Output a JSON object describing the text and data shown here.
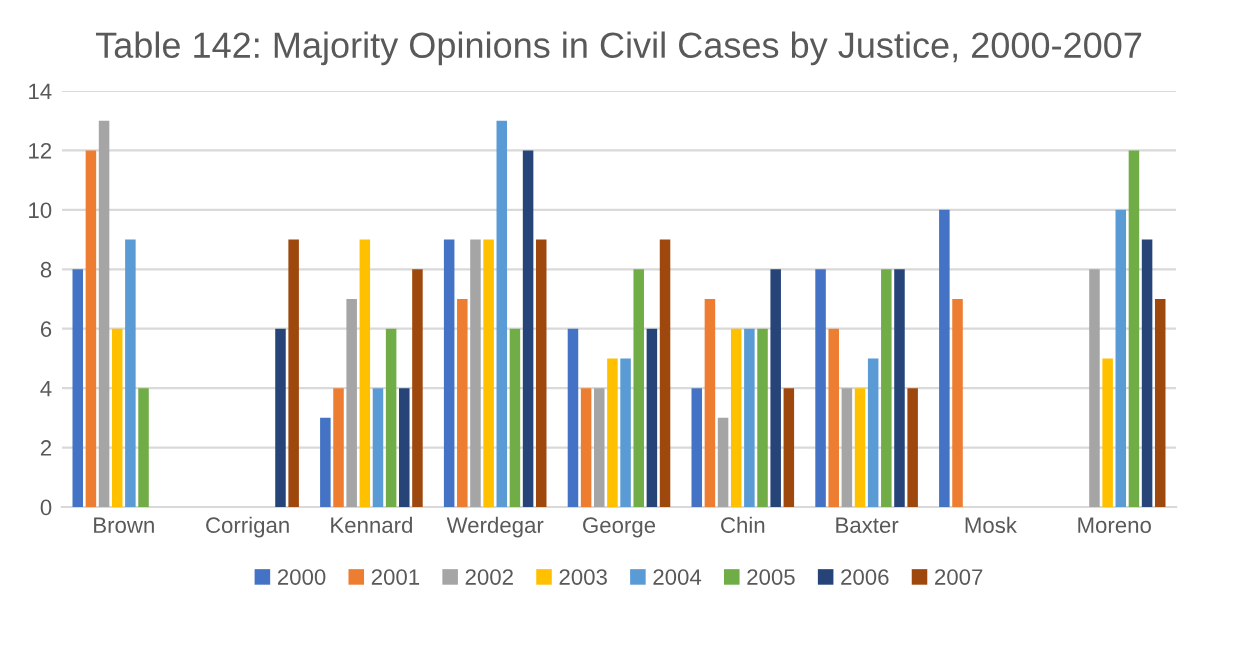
{
  "chart_data": {
    "type": "bar",
    "title": "Table 142: Majority Opinions in Civil Cases by Justice, 2000-2007",
    "categories": [
      "Brown",
      "Corrigan",
      "Kennard",
      "Werdegar",
      "George",
      "Chin",
      "Baxter",
      "Mosk",
      "Moreno"
    ],
    "series": [
      {
        "name": "2000",
        "color": "#4472c4",
        "values": [
          8,
          null,
          3,
          9,
          6,
          4,
          8,
          10,
          null
        ]
      },
      {
        "name": "2001",
        "color": "#ed7d31",
        "values": [
          12,
          null,
          4,
          7,
          4,
          7,
          6,
          7,
          null
        ]
      },
      {
        "name": "2002",
        "color": "#a5a5a5",
        "values": [
          13,
          null,
          7,
          9,
          4,
          3,
          4,
          null,
          8
        ]
      },
      {
        "name": "2003",
        "color": "#ffc000",
        "values": [
          6,
          null,
          9,
          9,
          5,
          6,
          4,
          null,
          5
        ]
      },
      {
        "name": "2004",
        "color": "#5b9bd5",
        "values": [
          9,
          null,
          4,
          13,
          5,
          6,
          5,
          null,
          10
        ]
      },
      {
        "name": "2005",
        "color": "#70ad47",
        "values": [
          4,
          null,
          6,
          6,
          8,
          6,
          8,
          null,
          12
        ]
      },
      {
        "name": "2006",
        "color": "#264478",
        "values": [
          null,
          6,
          4,
          12,
          6,
          8,
          8,
          null,
          9
        ]
      },
      {
        "name": "2007",
        "color": "#9e480e",
        "values": [
          null,
          9,
          8,
          9,
          9,
          4,
          4,
          null,
          7
        ]
      }
    ],
    "ylim": [
      0,
      14
    ],
    "yticks": [
      0,
      2,
      4,
      6,
      8,
      10,
      12,
      14
    ],
    "grid": "y",
    "legend": "bottom"
  }
}
